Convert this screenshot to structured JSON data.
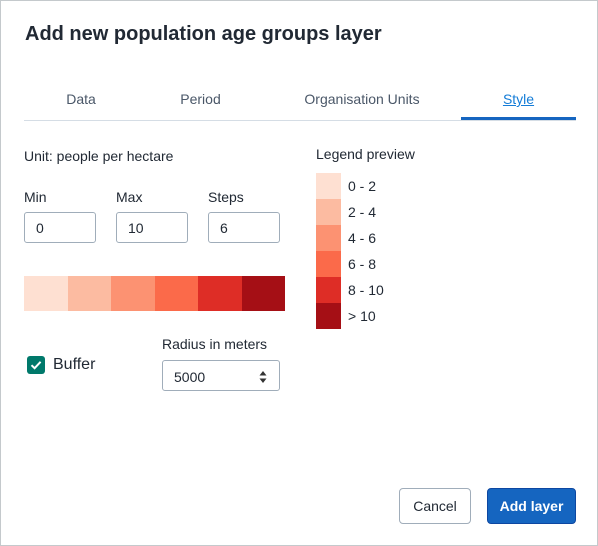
{
  "dialog": {
    "title": "Add new population age groups layer"
  },
  "tabs": [
    {
      "label": "Data",
      "active": false
    },
    {
      "label": "Period",
      "active": false
    },
    {
      "label": "Organisation Units",
      "active": false
    },
    {
      "label": "Style",
      "active": true
    }
  ],
  "style": {
    "unit_text": "Unit: people per hectare",
    "min_label": "Min",
    "max_label": "Max",
    "steps_label": "Steps",
    "min_value": "0",
    "max_value": "10",
    "steps_value": "6",
    "ramp_colors": [
      "#fee0d2",
      "#fcbba1",
      "#fc9272",
      "#fb6a4a",
      "#de2d26",
      "#a50f15"
    ],
    "buffer_label": "Buffer",
    "buffer_checked": true,
    "radius_label": "Radius in meters",
    "radius_value": "5000"
  },
  "legend": {
    "title": "Legend preview",
    "items": [
      {
        "label": "0 - 2",
        "color": "#fee0d2"
      },
      {
        "label": "2 - 4",
        "color": "#fcbba1"
      },
      {
        "label": "4 - 6",
        "color": "#fc9272"
      },
      {
        "label": "6 - 8",
        "color": "#fb6a4a"
      },
      {
        "label": "8 - 10",
        "color": "#de2d26"
      },
      {
        "label": "> 10",
        "color": "#a50f15"
      }
    ]
  },
  "actions": {
    "cancel_label": "Cancel",
    "add_label": "Add layer"
  },
  "colors": {
    "primary": "#1565c0",
    "tab_active": "#147cd7",
    "checkbox": "#00796b"
  }
}
